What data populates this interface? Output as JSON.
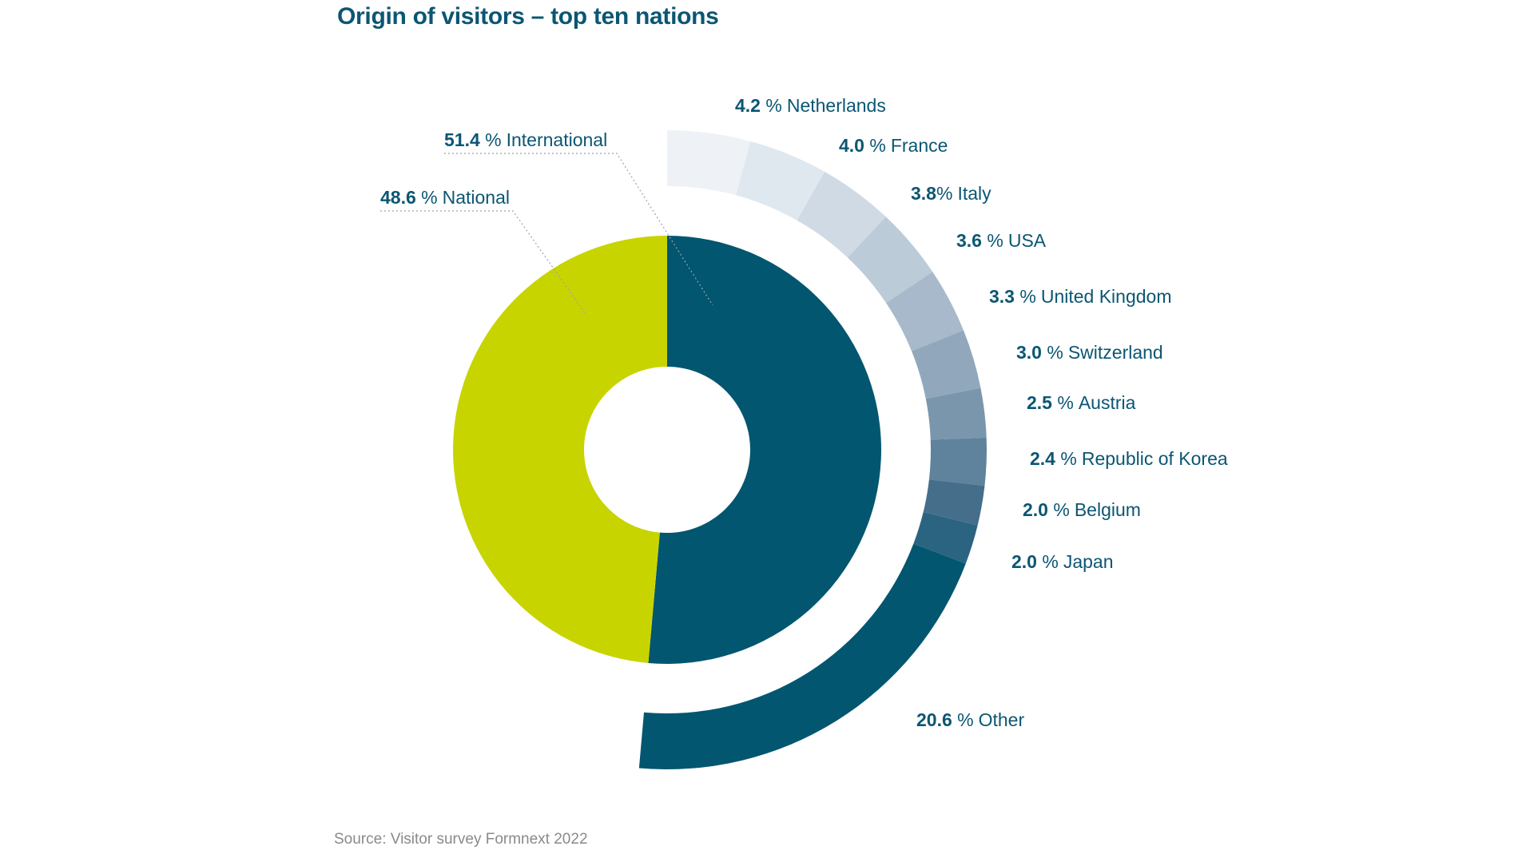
{
  "chart_data": {
    "type": "pie",
    "title": "Origin of visitors – top ten nations",
    "inner_ring": [
      {
        "pct": "51.4",
        "unit": " %",
        "name": "International",
        "value": 51.4,
        "color": "#02566f"
      },
      {
        "pct": "48.6",
        "unit": " %",
        "name": "National",
        "value": 48.6,
        "color": "#c8d400"
      }
    ],
    "outer_ring": [
      {
        "pct": "4.2",
        "unit": " %",
        "name": "Netherlands",
        "value": 4.2,
        "color": "#eef2f6"
      },
      {
        "pct": "4.0",
        "unit": " %",
        "name": "France",
        "value": 4.0,
        "color": "#e0e8ef"
      },
      {
        "pct": "3.8",
        "unit": "%",
        "name": "Italy",
        "value": 3.8,
        "color": "#cfdae4"
      },
      {
        "pct": "3.6",
        "unit": " %",
        "name": "USA",
        "value": 3.6,
        "color": "#bccbd8"
      },
      {
        "pct": "3.3",
        "unit": " %",
        "name": "United Kingdom",
        "value": 3.3,
        "color": "#a7b9ca"
      },
      {
        "pct": "3.0",
        "unit": " %",
        "name": "Switzerland",
        "value": 3.0,
        "color": "#91a8bc"
      },
      {
        "pct": "2.5",
        "unit": " %",
        "name": "Austria",
        "value": 2.5,
        "color": "#7a96ad"
      },
      {
        "pct": "2.4",
        "unit": " %",
        "name": "Republic of Korea",
        "value": 2.4,
        "color": "#5f829d"
      },
      {
        "pct": "2.0",
        "unit": " %",
        "name": "Belgium",
        "value": 2.0,
        "color": "#446e8a"
      },
      {
        "pct": "2.0",
        "unit": " %",
        "name": "Japan",
        "value": 2.0,
        "color": "#2b6480"
      },
      {
        "pct": "20.6",
        "unit": " %",
        "name": "Other",
        "value": 20.6,
        "color": "#02566f"
      }
    ],
    "source": "Source: Visitor survey Formnext 2022"
  }
}
